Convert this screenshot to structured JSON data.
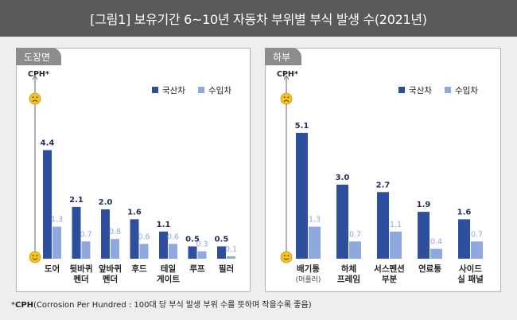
{
  "title": "[그림1] 보유기간 6~10년 자동차 부위별 부식 발생 수(2021년)",
  "colors": {
    "domestic": "#2e4e9e",
    "imported": "#8fa9df",
    "axis": "#7f7f7f",
    "header_bg": "#595959",
    "tab_bg": "#8c8c8c"
  },
  "icons": {
    "top": "sad-face-icon",
    "bottom": "smiley-face-icon"
  },
  "legend": {
    "domestic": "국산차",
    "imported": "수입차"
  },
  "footnote": {
    "marker": "*",
    "term": "CPH",
    "text": "(Corrosion Per Hundred : 100대 당 부식 발생 부위 수를 뜻하며 작을수록 좋음)"
  },
  "chart_data": [
    {
      "type": "bar",
      "panel_label": "도장면",
      "ylabel": "CPH*",
      "categories": [
        [
          "도어"
        ],
        [
          "뒷바퀴",
          "펜더"
        ],
        [
          "앞바퀴",
          "펜더"
        ],
        [
          "후드"
        ],
        [
          "테일",
          "게이트"
        ],
        [
          "루프"
        ],
        [
          "필러"
        ]
      ],
      "series": [
        {
          "name": "국산차",
          "values": [
            4.4,
            2.1,
            2.0,
            1.6,
            1.1,
            0.5,
            0.5
          ]
        },
        {
          "name": "수입차",
          "values": [
            1.3,
            0.7,
            0.8,
            0.6,
            0.6,
            0.3,
            0.1
          ]
        }
      ]
    },
    {
      "type": "bar",
      "panel_label": "하부",
      "ylabel": "CPH*",
      "categories": [
        [
          "배기통",
          "(머플러)"
        ],
        [
          "하체",
          "프레임"
        ],
        [
          "서스펜션",
          "부분"
        ],
        [
          "연료통"
        ],
        [
          "사이드",
          "실 패널"
        ]
      ],
      "series": [
        {
          "name": "국산차",
          "values": [
            5.1,
            3.0,
            2.7,
            1.9,
            1.6
          ]
        },
        {
          "name": "수입차",
          "values": [
            1.3,
            0.7,
            1.1,
            0.4,
            0.7
          ]
        }
      ]
    }
  ]
}
